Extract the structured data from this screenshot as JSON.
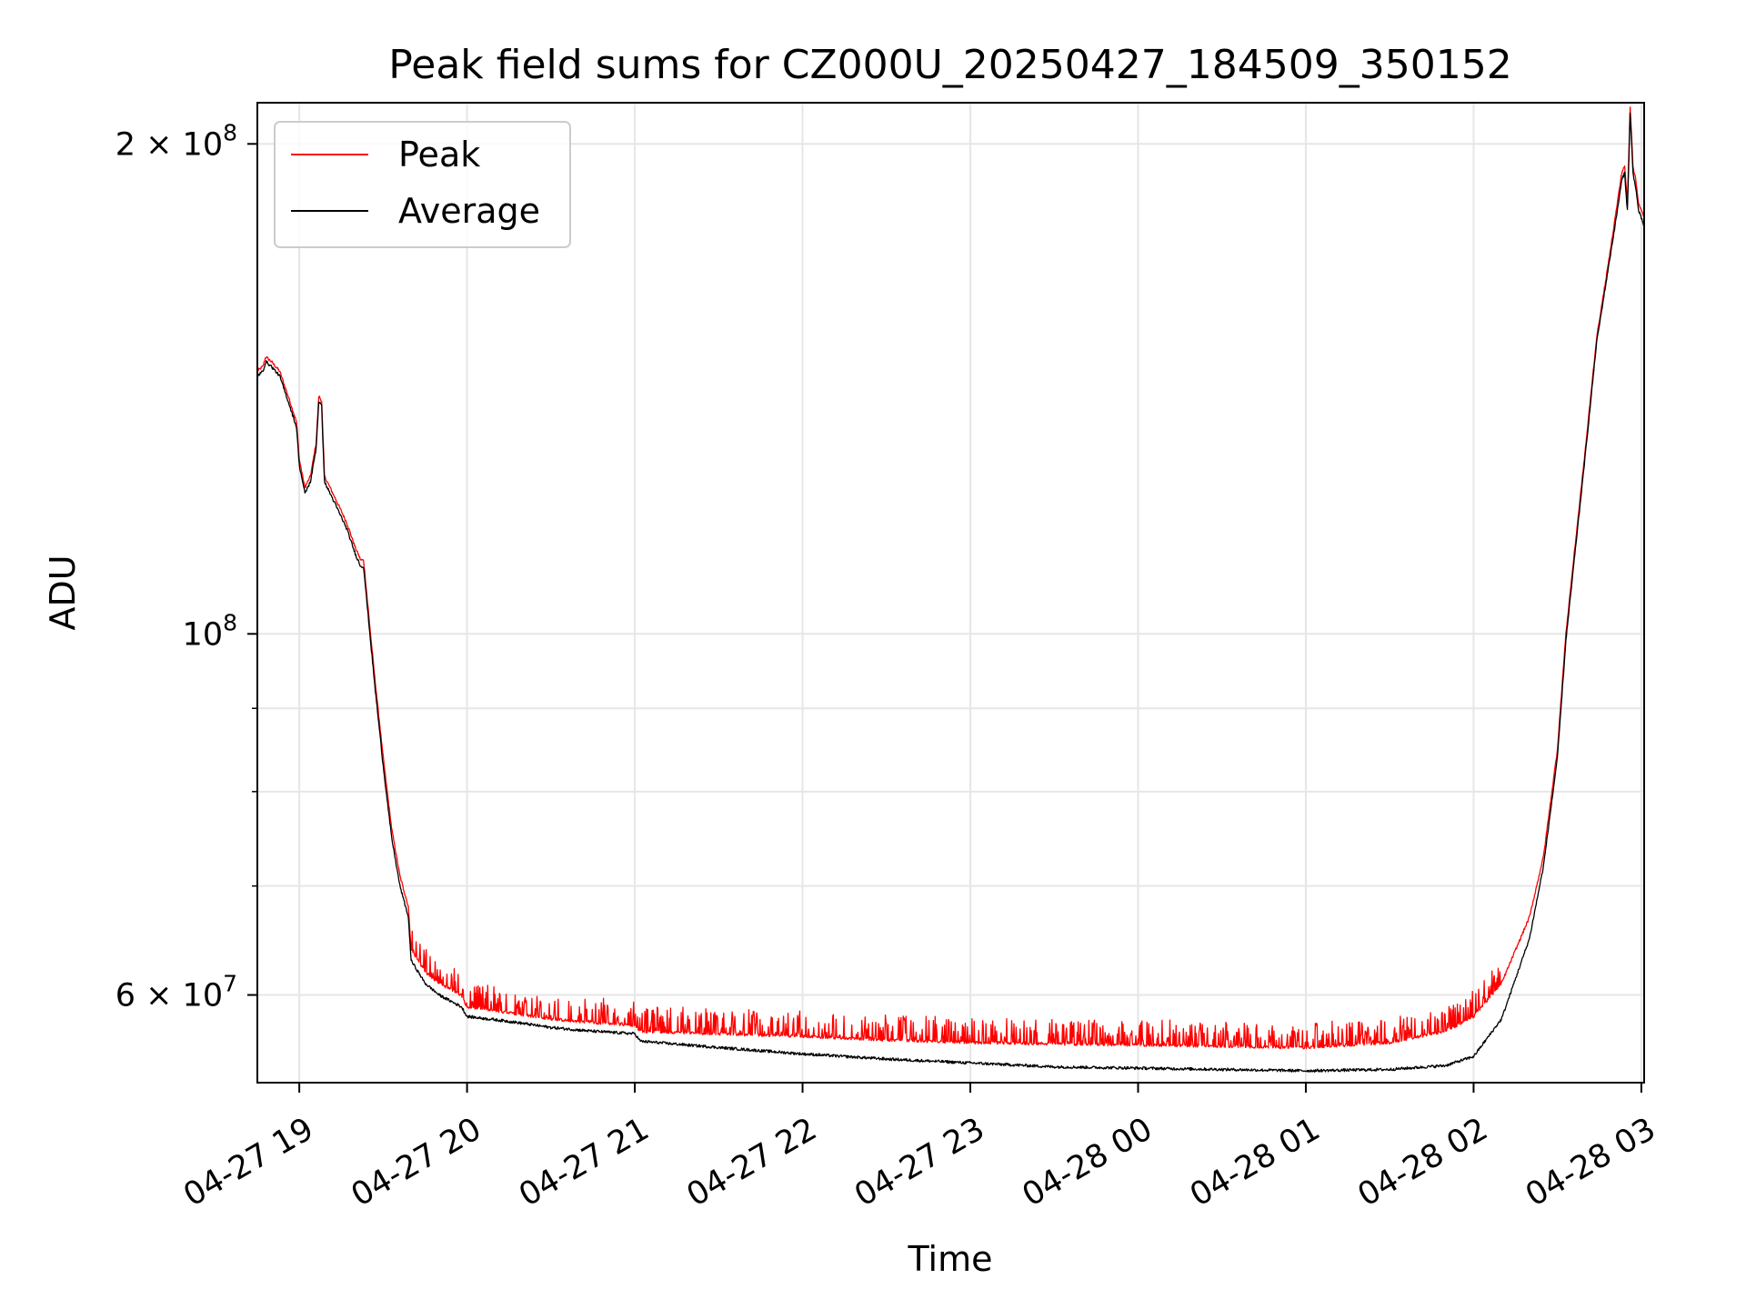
{
  "chart_data": {
    "type": "line",
    "title": "Peak field sums for CZ000U_20250427_184509_350152",
    "xlabel": "Time",
    "ylabel": "ADU",
    "y_scale": "log",
    "ylim": [
      53000000,
      212000000
    ],
    "xlim": [
      "2025-04-27 18:45",
      "2025-04-28 03:01"
    ],
    "x_ticks": [
      {
        "time": "2025-04-27 19:00",
        "label": "04-27 19"
      },
      {
        "time": "2025-04-27 20:00",
        "label": "04-27 20"
      },
      {
        "time": "2025-04-27 21:00",
        "label": "04-27 21"
      },
      {
        "time": "2025-04-27 22:00",
        "label": "04-27 22"
      },
      {
        "time": "2025-04-27 23:00",
        "label": "04-27 23"
      },
      {
        "time": "2025-04-28 00:00",
        "label": "04-28 00"
      },
      {
        "time": "2025-04-28 01:00",
        "label": "04-28 01"
      },
      {
        "time": "2025-04-28 02:00",
        "label": "04-28 02"
      },
      {
        "time": "2025-04-28 03:00",
        "label": "04-28 03"
      }
    ],
    "y_major_ticks": [
      {
        "value": 60000000,
        "base": "6 × 10",
        "exp": "7"
      },
      {
        "value": 100000000,
        "base": "10",
        "exp": "8"
      },
      {
        "value": 200000000,
        "base": "2 × 10",
        "exp": "8"
      }
    ],
    "y_minor_ticks": [
      70000000,
      80000000,
      90000000
    ],
    "grid": true,
    "legend_position": "top-left",
    "series": [
      {
        "name": "Peak",
        "color": "#ff0000",
        "spiky": true,
        "points": [
          [
            "2025-04-27 18:45",
            145000000
          ],
          [
            "2025-04-27 18:47",
            146000000
          ],
          [
            "2025-04-27 18:48",
            148000000
          ],
          [
            "2025-04-27 18:50",
            147000000
          ],
          [
            "2025-04-27 18:53",
            145000000
          ],
          [
            "2025-04-27 18:56",
            140000000
          ],
          [
            "2025-04-27 18:59",
            135000000
          ],
          [
            "2025-04-27 19:00",
            128000000
          ],
          [
            "2025-04-27 19:02",
            123000000
          ],
          [
            "2025-04-27 19:04",
            125000000
          ],
          [
            "2025-04-27 19:06",
            131000000
          ],
          [
            "2025-04-27 19:07",
            140000000
          ],
          [
            "2025-04-27 19:08",
            139000000
          ],
          [
            "2025-04-27 19:09",
            125000000
          ],
          [
            "2025-04-27 19:11",
            123000000
          ],
          [
            "2025-04-27 19:14",
            120000000
          ],
          [
            "2025-04-27 19:17",
            117000000
          ],
          [
            "2025-04-27 19:20",
            113000000
          ],
          [
            "2025-04-27 19:22",
            111000000
          ],
          [
            "2025-04-27 19:23",
            111000000
          ],
          [
            "2025-04-27 19:25",
            102000000
          ],
          [
            "2025-04-27 19:27",
            94000000
          ],
          [
            "2025-04-27 19:30",
            84000000
          ],
          [
            "2025-04-27 19:33",
            76000000
          ],
          [
            "2025-04-27 19:36",
            71000000
          ],
          [
            "2025-04-27 19:39",
            68000000
          ],
          [
            "2025-04-27 19:40",
            64000000
          ],
          [
            "2025-04-27 19:45",
            62000000
          ],
          [
            "2025-04-27 19:50",
            61000000
          ],
          [
            "2025-04-27 19:58",
            60000000
          ],
          [
            "2025-04-27 20:00",
            59000000
          ],
          [
            "2025-04-27 20:15",
            58500000
          ],
          [
            "2025-04-27 20:30",
            58000000
          ],
          [
            "2025-04-27 20:45",
            57700000
          ],
          [
            "2025-04-27 21:00",
            57500000
          ],
          [
            "2025-04-27 21:02",
            57000000
          ],
          [
            "2025-04-27 21:30",
            56800000
          ],
          [
            "2025-04-27 22:00",
            56600000
          ],
          [
            "2025-04-27 22:30",
            56300000
          ],
          [
            "2025-04-27 23:00",
            56100000
          ],
          [
            "2025-04-27 23:30",
            56000000
          ],
          [
            "2025-04-28 00:00",
            55900000
          ],
          [
            "2025-04-28 00:30",
            55800000
          ],
          [
            "2025-04-28 01:00",
            55700000
          ],
          [
            "2025-04-28 01:30",
            56100000
          ],
          [
            "2025-04-28 01:50",
            57000000
          ],
          [
            "2025-04-28 02:00",
            58200000
          ],
          [
            "2025-04-28 02:10",
            61000000
          ],
          [
            "2025-04-28 02:20",
            67000000
          ],
          [
            "2025-04-28 02:25",
            73000000
          ],
          [
            "2025-04-28 02:30",
            85000000
          ],
          [
            "2025-04-28 02:33",
            100000000
          ],
          [
            "2025-04-28 02:36",
            112000000
          ],
          [
            "2025-04-28 02:40",
            130000000
          ],
          [
            "2025-04-28 02:44",
            152000000
          ],
          [
            "2025-04-28 02:48",
            168000000
          ],
          [
            "2025-04-28 02:51",
            182000000
          ],
          [
            "2025-04-28 02:53",
            192000000
          ],
          [
            "2025-04-28 02:54",
            194000000
          ],
          [
            "2025-04-28 02:55",
            184000000
          ],
          [
            "2025-04-28 02:56",
            211000000
          ],
          [
            "2025-04-28 02:57",
            194000000
          ],
          [
            "2025-04-28 02:58",
            190000000
          ],
          [
            "2025-04-28 02:59",
            184000000
          ],
          [
            "2025-04-28 03:00",
            182000000
          ],
          [
            "2025-04-28 03:01",
            180000000
          ]
        ]
      },
      {
        "name": "Average",
        "color": "#000000",
        "spiky": false,
        "points": [
          [
            "2025-04-27 18:45",
            144000000
          ],
          [
            "2025-04-27 18:47",
            145000000
          ],
          [
            "2025-04-27 18:48",
            147000000
          ],
          [
            "2025-04-27 18:50",
            146000000
          ],
          [
            "2025-04-27 18:53",
            144000000
          ],
          [
            "2025-04-27 18:56",
            139000000
          ],
          [
            "2025-04-27 18:59",
            134000000
          ],
          [
            "2025-04-27 19:00",
            127000000
          ],
          [
            "2025-04-27 19:02",
            122000000
          ],
          [
            "2025-04-27 19:04",
            124000000
          ],
          [
            "2025-04-27 19:06",
            130000000
          ],
          [
            "2025-04-27 19:07",
            139000000
          ],
          [
            "2025-04-27 19:08",
            138000000
          ],
          [
            "2025-04-27 19:09",
            124000000
          ],
          [
            "2025-04-27 19:11",
            122000000
          ],
          [
            "2025-04-27 19:14",
            119000000
          ],
          [
            "2025-04-27 19:17",
            116000000
          ],
          [
            "2025-04-27 19:20",
            112000000
          ],
          [
            "2025-04-27 19:22",
            110000000
          ],
          [
            "2025-04-27 19:23",
            110000000
          ],
          [
            "2025-04-27 19:25",
            101000000
          ],
          [
            "2025-04-27 19:27",
            93000000
          ],
          [
            "2025-04-27 19:30",
            83000000
          ],
          [
            "2025-04-27 19:33",
            75000000
          ],
          [
            "2025-04-27 19:36",
            70000000
          ],
          [
            "2025-04-27 19:39",
            67000000
          ],
          [
            "2025-04-27 19:40",
            63000000
          ],
          [
            "2025-04-27 19:45",
            61000000
          ],
          [
            "2025-04-27 19:50",
            60000000
          ],
          [
            "2025-04-27 19:58",
            59000000
          ],
          [
            "2025-04-27 20:00",
            58200000
          ],
          [
            "2025-04-27 20:15",
            57800000
          ],
          [
            "2025-04-27 20:30",
            57300000
          ],
          [
            "2025-04-27 20:45",
            57000000
          ],
          [
            "2025-04-27 21:00",
            56800000
          ],
          [
            "2025-04-27 21:02",
            56200000
          ],
          [
            "2025-04-27 21:30",
            55700000
          ],
          [
            "2025-04-27 22:00",
            55200000
          ],
          [
            "2025-04-27 22:30",
            54800000
          ],
          [
            "2025-04-27 23:00",
            54500000
          ],
          [
            "2025-04-27 23:30",
            54200000
          ],
          [
            "2025-04-28 00:00",
            54100000
          ],
          [
            "2025-04-28 00:30",
            54000000
          ],
          [
            "2025-04-28 01:00",
            53900000
          ],
          [
            "2025-04-28 01:30",
            54000000
          ],
          [
            "2025-04-28 01:50",
            54300000
          ],
          [
            "2025-04-28 02:00",
            55000000
          ],
          [
            "2025-04-28 02:10",
            58000000
          ],
          [
            "2025-04-28 02:20",
            65000000
          ],
          [
            "2025-04-28 02:25",
            72000000
          ],
          [
            "2025-04-28 02:30",
            84000000
          ],
          [
            "2025-04-28 02:33",
            99000000
          ],
          [
            "2025-04-28 02:36",
            111000000
          ],
          [
            "2025-04-28 02:40",
            129000000
          ],
          [
            "2025-04-28 02:44",
            151000000
          ],
          [
            "2025-04-28 02:48",
            167000000
          ],
          [
            "2025-04-28 02:51",
            180000000
          ],
          [
            "2025-04-28 02:53",
            190000000
          ],
          [
            "2025-04-28 02:54",
            192000000
          ],
          [
            "2025-04-28 02:55",
            182000000
          ],
          [
            "2025-04-28 02:56",
            209000000
          ],
          [
            "2025-04-28 02:57",
            192000000
          ],
          [
            "2025-04-28 02:58",
            188000000
          ],
          [
            "2025-04-28 02:59",
            182000000
          ],
          [
            "2025-04-28 03:00",
            180000000
          ],
          [
            "2025-04-28 03:01",
            178000000
          ]
        ]
      }
    ]
  }
}
